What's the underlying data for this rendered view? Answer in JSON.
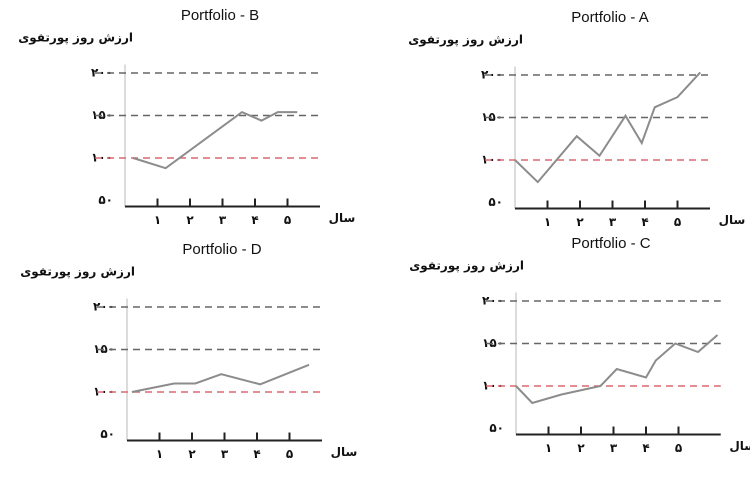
{
  "chart_data": [
    {
      "type": "line",
      "title": "Portfolio - B",
      "ylabel": "ارزش روز پورتفوی",
      "xlabel": "سال",
      "x": [
        0.25,
        1.25,
        3.6,
        4.2,
        4.7,
        5.3
      ],
      "series": [
        {
          "color": "#8c8c8c",
          "values": [
            100,
            88,
            154,
            144,
            154,
            154
          ]
        }
      ],
      "xlim": [
        0,
        6
      ],
      "xticks": [
        {
          "value": 1,
          "label": "۱"
        },
        {
          "value": 2,
          "label": "۲"
        },
        {
          "value": 3,
          "label": "۳"
        },
        {
          "value": 4,
          "label": "۴"
        },
        {
          "value": 5,
          "label": "۵"
        }
      ],
      "ylim": [
        50,
        210
      ],
      "yticks": [
        {
          "value": 50,
          "label": "۵۰"
        },
        {
          "value": 100,
          "label": "۱۰۰"
        },
        {
          "value": 150,
          "label": "۱۵۰"
        },
        {
          "value": 200,
          "label": "۲۰۰"
        }
      ],
      "grid": true,
      "grid_color": "#666666",
      "reference_line": 100,
      "reference_color": "#d9696f"
    },
    {
      "type": "line",
      "title": "Portfolio - A",
      "ylabel": "ارزش روز پورتفوی",
      "xlabel": "سال",
      "x": [
        0,
        0.7,
        1.9,
        2.6,
        3.4,
        3.9,
        4.3,
        5,
        5.7
      ],
      "series": [
        {
          "color": "#8c8c8c",
          "values": [
            100,
            74,
            128,
            105,
            152,
            120,
            162,
            174,
            203
          ]
        }
      ],
      "xlim": [
        0,
        6
      ],
      "xticks": [
        {
          "value": 1,
          "label": "۱"
        },
        {
          "value": 2,
          "label": "۲"
        },
        {
          "value": 3,
          "label": "۳"
        },
        {
          "value": 4,
          "label": "۴"
        },
        {
          "value": 5,
          "label": "۵"
        }
      ],
      "ylim": [
        50,
        210
      ],
      "yticks": [
        {
          "value": 50,
          "label": "۵۰"
        },
        {
          "value": 100,
          "label": "۱۰۰"
        },
        {
          "value": 150,
          "label": "۱۵۰"
        },
        {
          "value": 200,
          "label": "۲۰۰"
        }
      ],
      "grid": true,
      "grid_color": "#666666",
      "reference_line": 100,
      "reference_color": "#d9696f"
    },
    {
      "type": "line",
      "title": "Portfolio - D",
      "ylabel": "ارزش روز پورتفوی",
      "xlabel": "سال",
      "x": [
        0.15,
        1.45,
        2.1,
        2.9,
        4.1,
        5.6
      ],
      "series": [
        {
          "color": "#8c8c8c",
          "values": [
            100,
            110,
            110,
            121,
            109,
            132
          ]
        }
      ],
      "xlim": [
        0,
        6
      ],
      "xticks": [
        {
          "value": 1,
          "label": "۱"
        },
        {
          "value": 2,
          "label": "۲"
        },
        {
          "value": 3,
          "label": "۳"
        },
        {
          "value": 4,
          "label": "۴"
        },
        {
          "value": 5,
          "label": "۵"
        }
      ],
      "ylim": [
        50,
        210
      ],
      "yticks": [
        {
          "value": 50,
          "label": "۵۰"
        },
        {
          "value": 100,
          "label": "۱۰۰"
        },
        {
          "value": 150,
          "label": "۱۵۰"
        },
        {
          "value": 200,
          "label": "۲۰۰"
        }
      ],
      "grid": true,
      "grid_color": "#666666",
      "reference_line": 100,
      "reference_color": "#d9696f"
    },
    {
      "type": "line",
      "title": "Portfolio - C",
      "ylabel": "ارزش روز پورتفوی",
      "xlabel": "سال",
      "x": [
        0,
        0.5,
        1.4,
        2.6,
        3.1,
        4,
        4.3,
        4.9,
        5.6,
        6.2
      ],
      "series": [
        {
          "color": "#8c8c8c",
          "values": [
            100,
            80,
            90,
            100,
            120,
            110,
            130,
            150,
            140,
            160
          ]
        }
      ],
      "xlim": [
        0,
        6.3
      ],
      "xticks": [
        {
          "value": 1,
          "label": "۱"
        },
        {
          "value": 2,
          "label": "۲"
        },
        {
          "value": 3,
          "label": "۳"
        },
        {
          "value": 4,
          "label": "۴"
        },
        {
          "value": 5,
          "label": "۵"
        }
      ],
      "ylim": [
        50,
        210
      ],
      "yticks": [
        {
          "value": 50,
          "label": "۵۰"
        },
        {
          "value": 100,
          "label": "۱۰۰"
        },
        {
          "value": 150,
          "label": "۱۵۰"
        },
        {
          "value": 200,
          "label": "۲۰۰"
        }
      ],
      "grid": true,
      "grid_color": "#666666",
      "reference_line": 100,
      "reference_color": "#d9696f"
    }
  ]
}
